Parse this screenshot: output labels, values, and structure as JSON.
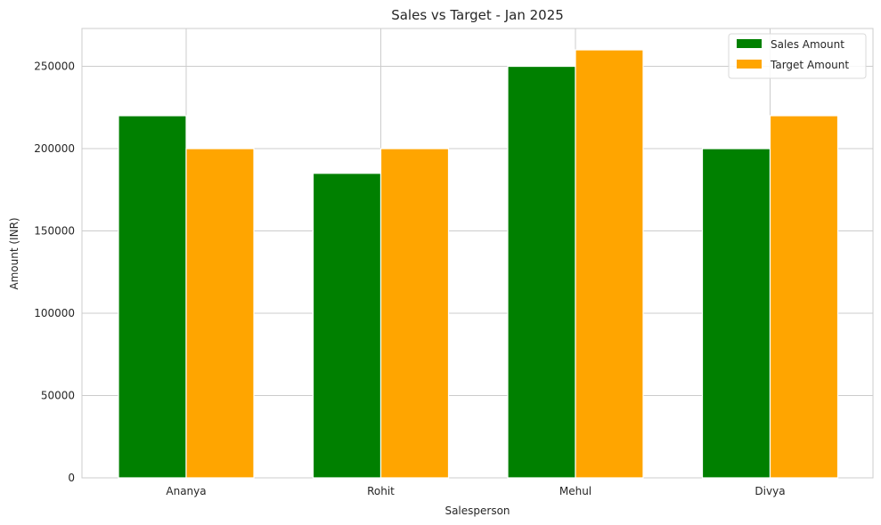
{
  "chart_data": {
    "type": "bar",
    "title": "Sales vs Target - Jan 2025",
    "xlabel": "Salesperson",
    "ylabel": "Amount (INR)",
    "categories": [
      "Ananya",
      "Rohit",
      "Mehul",
      "Divya"
    ],
    "series": [
      {
        "name": "Sales Amount",
        "color": "#008000",
        "values": [
          220000,
          185000,
          250000,
          200000
        ]
      },
      {
        "name": "Target Amount",
        "color": "#ffa500",
        "values": [
          200000,
          200000,
          260000,
          220000
        ]
      }
    ],
    "ylim": [
      0,
      273000
    ],
    "yticks": [
      0,
      50000,
      100000,
      150000,
      200000,
      250000
    ],
    "grid": true,
    "legend_position": "top-right"
  }
}
